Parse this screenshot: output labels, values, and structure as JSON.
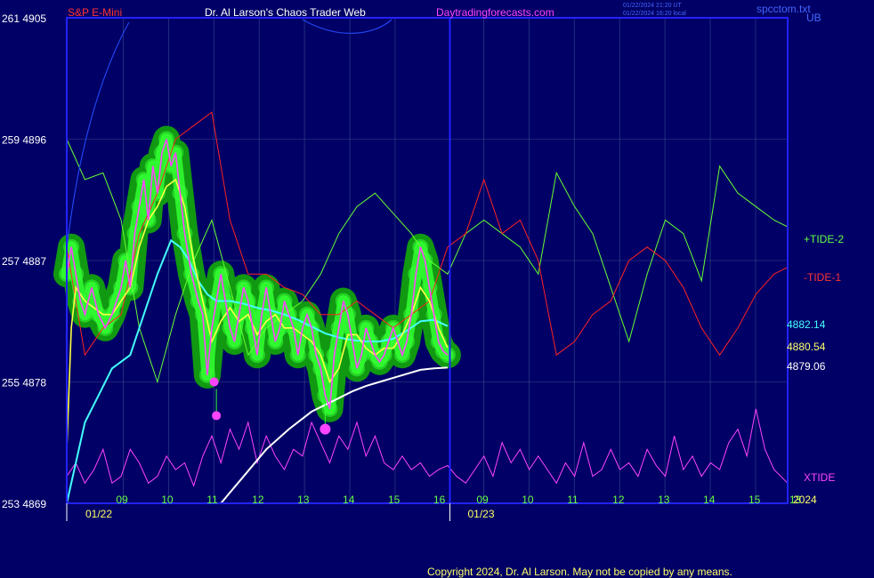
{
  "header": {
    "symbol": "S&P E-Mini",
    "author": "Dr. Al Larson's Chaos Trader Web",
    "site": "Daytradingforecasts.com",
    "timestamp_1": "01/22/2024 21:20 UT",
    "timestamp_2": "01/22/2024 16:20 local",
    "corner": "spcctom.txt",
    "ub": "UB"
  },
  "footer": {
    "copyright": "Copyright 2024, Dr. Al Larson. May not be copied by any means."
  },
  "chart_data": {
    "type": "line",
    "title": "S&P E-Mini",
    "colors": {
      "price": "#ff44ff",
      "ema_fast": "#ffff44",
      "ema_mid": "#44ffff",
      "ema_slow": "#ffffff",
      "tide2": "#66ff33",
      "tide1": "#ff2222",
      "xtide": "#ff44ff",
      "band": "#119911",
      "glow": "#33ff33",
      "grid": "#6688aa",
      "axes": "#2222ff"
    },
    "y_axis": {
      "ticks": [
        {
          "value": 4905,
          "left_label": "261 4905"
        },
        {
          "value": 4896,
          "left_label": "259 4896"
        },
        {
          "value": 4887,
          "left_label": "257 4887"
        },
        {
          "value": 4878,
          "left_label": "255 4878"
        },
        {
          "value": 4869,
          "left_label": "253 4869"
        }
      ],
      "ylim": [
        4869,
        4905
      ]
    },
    "x_axis": {
      "hours_day1": [
        "09",
        "10",
        "11",
        "12",
        "13",
        "14",
        "15",
        "16"
      ],
      "hours_day2": [
        "09",
        "10",
        "11",
        "12",
        "13",
        "14",
        "15",
        "13"
      ],
      "dates": [
        "01/22",
        "01/23"
      ],
      "year": "2024"
    },
    "right_values": [
      {
        "label": "4882.14",
        "series": "ema_mid",
        "value": 4882.14
      },
      {
        "label": "4880.54",
        "series": "ema_fast",
        "value": 4880.54
      },
      {
        "label": "4879.06",
        "series": "ema_slow",
        "value": 4879.06
      }
    ],
    "tide_labels": {
      "tide2": "+TIDE-2",
      "tide1": "-TIDE-1",
      "xtide": "XTIDE"
    },
    "series": [
      {
        "key": "price",
        "x": [
          7.6,
          7.7,
          7.8,
          7.9,
          8.0,
          8.15,
          8.3,
          8.45,
          8.6,
          8.7,
          8.8,
          8.9,
          9.0,
          9.1,
          9.2,
          9.3,
          9.4,
          9.5,
          9.6,
          9.7,
          9.8,
          9.9,
          10.0,
          10.1,
          10.2,
          10.35,
          10.5,
          10.6,
          10.7,
          10.8,
          10.9,
          11.0,
          11.1,
          11.2,
          11.3,
          11.4,
          11.5,
          11.6,
          11.7,
          11.8,
          11.9,
          12.0,
          12.1,
          12.2,
          12.3,
          12.4,
          12.5,
          12.6,
          12.7,
          12.8,
          12.9,
          13.0,
          13.1,
          13.2,
          13.3,
          13.4,
          13.5,
          13.6,
          13.7,
          13.8,
          13.9,
          14.0,
          14.1,
          14.2,
          14.3,
          14.4,
          14.5,
          14.6,
          14.7,
          14.8,
          14.9,
          15.0,
          15.1,
          15.2,
          15.3,
          15.4,
          15.5,
          15.6,
          15.7,
          15.8,
          15.9,
          16.0
        ],
        "values": [
          4886,
          4888,
          4886,
          4884,
          4883,
          4885,
          4883,
          4882,
          4883,
          4884,
          4885,
          4887,
          4885,
          4889,
          4891,
          4893,
          4890,
          4894,
          4892,
          4895,
          4896,
          4894,
          4895,
          4892,
          4889,
          4886,
          4884,
          4883,
          4878.5,
          4882,
          4884,
          4886,
          4884,
          4882,
          4881,
          4883,
          4885,
          4884,
          4882,
          4880,
          4883,
          4885,
          4883,
          4881,
          4882,
          4884,
          4883,
          4882,
          4880,
          4882,
          4883,
          4882,
          4880,
          4879,
          4877,
          4876,
          4880,
          4882,
          4884,
          4883,
          4881,
          4879,
          4880,
          4882,
          4881,
          4880,
          4879.5,
          4880,
          4881,
          4882,
          4881,
          4880,
          4881,
          4883,
          4886,
          4888,
          4887,
          4885,
          4883,
          4881,
          4880.3,
          4880
        ]
      },
      {
        "key": "ema_fast",
        "x": [
          7.6,
          7.7,
          7.8,
          8.0,
          8.2,
          8.4,
          8.6,
          8.8,
          9.0,
          9.2,
          9.4,
          9.6,
          9.8,
          10.0,
          10.2,
          10.4,
          10.6,
          10.8,
          11.0,
          11.2,
          11.4,
          11.6,
          11.8,
          12.0,
          12.2,
          12.4,
          12.6,
          12.8,
          13.0,
          13.2,
          13.4,
          13.6,
          13.8,
          14.0,
          14.2,
          14.4,
          14.6,
          14.8,
          15.0,
          15.2,
          15.4,
          15.6,
          15.8,
          16.0
        ],
        "values": [
          4873,
          4882,
          4885,
          4884,
          4883.5,
          4883,
          4883,
          4884,
          4885,
          4888,
          4890,
          4891,
          4892.5,
          4893,
          4891,
          4887,
          4884,
          4881,
          4882.5,
          4883.5,
          4882.5,
          4883,
          4881.5,
          4882.5,
          4883,
          4882,
          4882,
          4881.5,
          4881,
          4880,
          4878,
          4879,
          4881.5,
          4881.5,
          4880.5,
          4880,
          4880.5,
          4880.5,
          4881.5,
          4883,
          4885,
          4884,
          4882,
          4880.54
        ]
      },
      {
        "key": "ema_mid",
        "x": [
          7.6,
          7.8,
          8.0,
          8.3,
          8.6,
          9.0,
          9.3,
          9.6,
          9.9,
          10.1,
          10.3,
          10.5,
          10.7,
          10.9,
          11.2,
          11.5,
          11.8,
          12.1,
          12.4,
          12.7,
          13.0,
          13.3,
          13.6,
          13.9,
          14.2,
          14.5,
          14.8,
          15.1,
          15.4,
          15.7,
          16.0
        ],
        "values": [
          4869,
          4872,
          4875,
          4877,
          4879,
          4880,
          4883,
          4886,
          4888.5,
          4888,
          4887,
          4885.5,
          4884.5,
          4884,
          4884,
          4883.8,
          4883.5,
          4883.3,
          4883,
          4882.6,
          4882.1,
          4881.6,
          4881.3,
          4881.1,
          4881,
          4881,
          4881.2,
          4881.8,
          4882.5,
          4882.6,
          4882.14
        ]
      },
      {
        "key": "ema_slow",
        "x": [
          11.0,
          11.5,
          12.0,
          12.5,
          13.0,
          13.3,
          13.6,
          13.9,
          14.2,
          14.5,
          14.8,
          15.1,
          15.4,
          15.7,
          16.0
        ],
        "values": [
          4869,
          4871,
          4873,
          4874.5,
          4875.8,
          4876.3,
          4876.8,
          4877.3,
          4877.7,
          4878.0,
          4878.3,
          4878.6,
          4878.9,
          4879.0,
          4879.06
        ]
      },
      {
        "key": "tide2",
        "x": [
          7.6,
          8.0,
          8.4,
          8.8,
          9.2,
          9.6,
          10.0,
          10.4,
          10.8,
          11.2,
          11.6,
          12.0,
          12.4,
          12.8,
          13.2,
          13.6,
          14.0,
          14.4,
          14.8,
          15.2,
          15.6,
          16.0,
          16.4,
          16.8,
          17.2,
          17.6,
          18.0,
          18.4,
          18.8,
          19.2,
          19.6,
          20.0,
          20.4,
          20.8,
          21.2,
          21.6,
          22.0,
          22.4,
          22.8,
          23.2,
          23.5
        ],
        "values": [
          4896,
          4893,
          4893.5,
          4890,
          4882,
          4878,
          4883,
          4887,
          4890,
          4885,
          4880,
          4882,
          4883,
          4884,
          4886,
          4889,
          4891,
          4892,
          4890.5,
          4889,
          4887,
          4886,
          4889,
          4890,
          4889,
          4888,
          4886,
          4893.5,
          4891,
          4889,
          4885,
          4881,
          4886,
          4890,
          4889,
          4885.5,
          4894,
          4892,
          4891,
          4890,
          4889.5
        ]
      },
      {
        "key": "tide1",
        "x": [
          7.6,
          8.0,
          8.4,
          8.8,
          9.2,
          9.6,
          10.0,
          10.4,
          10.8,
          11.2,
          11.6,
          12.0,
          12.4,
          12.8,
          13.2,
          13.6,
          14.0,
          14.4,
          14.8,
          15.2,
          15.6,
          16.0,
          16.4,
          16.8,
          17.2,
          17.6,
          18.0,
          18.4,
          18.8,
          19.2,
          19.6,
          20.0,
          20.4,
          20.8,
          21.2,
          21.6,
          22.0,
          22.4,
          22.8,
          23.2,
          23.5
        ],
        "values": [
          4888,
          4880,
          4882,
          4883,
          4889,
          4892,
          4896,
          4897,
          4898,
          4890,
          4886,
          4886,
          4885,
          4884.5,
          4883,
          4883,
          4884,
          4883,
          4882,
          4883,
          4884,
          4888,
          4889,
          4893,
          4889,
          4890,
          4887,
          4880,
          4881,
          4883,
          4884,
          4887,
          4888,
          4887,
          4885,
          4882,
          4880,
          4882,
          4884.5,
          4886,
          4886.5
        ]
      },
      {
        "key": "xtide",
        "x": [
          7.6,
          7.8,
          8.0,
          8.2,
          8.4,
          8.6,
          8.8,
          9.0,
          9.2,
          9.4,
          9.6,
          9.8,
          10.0,
          10.2,
          10.4,
          10.6,
          10.8,
          11.0,
          11.2,
          11.4,
          11.6,
          11.8,
          12.0,
          12.2,
          12.4,
          12.6,
          12.8,
          13.0,
          13.2,
          13.4,
          13.6,
          13.8,
          14.0,
          14.2,
          14.4,
          14.6,
          14.8,
          15.0,
          15.2,
          15.4,
          15.6,
          15.8,
          16.0,
          16.2,
          16.4,
          16.6,
          16.8,
          17.0,
          17.2,
          17.4,
          17.6,
          17.8,
          18.0,
          18.2,
          18.4,
          18.6,
          18.8,
          19.0,
          19.2,
          19.4,
          19.6,
          19.8,
          20.0,
          20.2,
          20.4,
          20.6,
          20.8,
          21.0,
          21.2,
          21.4,
          21.6,
          21.8,
          22.0,
          22.2,
          22.4,
          22.6,
          22.8,
          23.0,
          23.2,
          23.5
        ],
        "values": [
          4871,
          4872,
          4870.5,
          4871.5,
          4873,
          4870.5,
          4871,
          4873,
          4872,
          4870.5,
          4871,
          4872.5,
          4871.5,
          4872,
          4870.3,
          4872.5,
          4874,
          4872,
          4874.5,
          4873,
          4875,
          4872,
          4874,
          4872.5,
          4871.5,
          4873,
          4872.5,
          4875,
          4873.5,
          4872,
          4874,
          4873,
          4875,
          4872.5,
          4874,
          4872,
          4871.5,
          4872.5,
          4871.5,
          4872,
          4871,
          4871.5,
          4871.8,
          4871,
          4870.5,
          4871.5,
          4872.5,
          4871,
          4873.5,
          4872,
          4873,
          4871.5,
          4872.5,
          4871.5,
          4870.5,
          4872,
          4871,
          4873.5,
          4871,
          4871.5,
          4873,
          4871.5,
          4872,
          4871,
          4873,
          4871.8,
          4871,
          4874,
          4871.5,
          4872.5,
          4871,
          4872,
          4871.5,
          4873.5,
          4874.5,
          4872.5,
          4876,
          4873,
          4871.5,
          4870.5
        ]
      }
    ],
    "markers": [
      {
        "x": 10.85,
        "value": 4878,
        "size": "medium"
      },
      {
        "x": 10.9,
        "value": 4875.5,
        "size": "medium"
      },
      {
        "x": 13.3,
        "value": 4874.5,
        "size": "large"
      }
    ],
    "grid": true
  }
}
